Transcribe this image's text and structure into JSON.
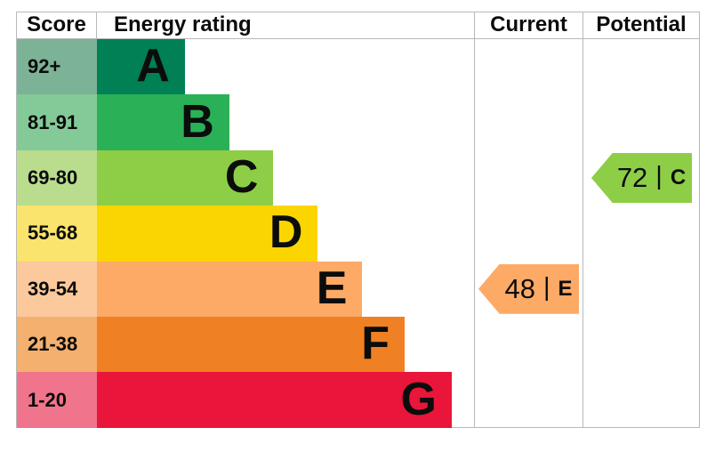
{
  "header": {
    "score": "Score",
    "energy_rating": "Energy rating",
    "current": "Current",
    "potential": "Potential"
  },
  "bands": [
    {
      "score_range": "92+",
      "letter": "A",
      "bar_color": "#008054",
      "score_cell_color": "#7cb295",
      "bar_width_pct": 23.3
    },
    {
      "score_range": "81-91",
      "letter": "B",
      "bar_color": "#2ab157",
      "score_cell_color": "#84ca99",
      "bar_width_pct": 35.1
    },
    {
      "score_range": "69-80",
      "letter": "C",
      "bar_color": "#8dce46",
      "score_cell_color": "#b9dd8d",
      "bar_width_pct": 46.8
    },
    {
      "score_range": "55-68",
      "letter": "D",
      "bar_color": "#fbd500",
      "score_cell_color": "#fae46d",
      "bar_width_pct": 58.6
    },
    {
      "score_range": "39-54",
      "letter": "E",
      "bar_color": "#fcaa65",
      "score_cell_color": "#fbc99c",
      "bar_width_pct": 70.4
    },
    {
      "score_range": "21-38",
      "letter": "F",
      "bar_color": "#ef8023",
      "score_cell_color": "#f4b06e",
      "bar_width_pct": 81.6
    },
    {
      "score_range": "1-20",
      "letter": "G",
      "bar_color": "#e9153b",
      "score_cell_color": "#f0748b",
      "bar_width_pct": 94.1
    }
  ],
  "current": {
    "value": "48",
    "separator": "|",
    "band": "E",
    "arrow_color": "#fcaa65",
    "row_index": 4
  },
  "potential": {
    "value": "72",
    "separator": "|",
    "band": "C",
    "arrow_color": "#8dce46",
    "row_index": 2
  },
  "colors": {
    "border": "#b6b9bb",
    "text": "#0b0c0c",
    "background": "#ffffff"
  },
  "chart_data": {
    "type": "bar",
    "orientation": "horizontal",
    "title": "Energy rating",
    "column_headers": [
      "Score",
      "Energy rating",
      "Current",
      "Potential"
    ],
    "categories": [
      "A",
      "B",
      "C",
      "D",
      "E",
      "F",
      "G"
    ],
    "score_ranges": [
      "92+",
      "81-91",
      "69-80",
      "55-68",
      "39-54",
      "21-38",
      "1-20"
    ],
    "bar_lengths_fraction_of_column": [
      0.233,
      0.351,
      0.468,
      0.586,
      0.704,
      0.816,
      0.941
    ],
    "band_colors": [
      "#008054",
      "#2ab157",
      "#8dce46",
      "#fbd500",
      "#fcaa65",
      "#ef8023",
      "#e9153b"
    ],
    "score_cell_colors": [
      "#7cb295",
      "#84ca99",
      "#b9dd8d",
      "#fae46d",
      "#fbc99c",
      "#f4b06e",
      "#f0748b"
    ],
    "current": {
      "score": 48,
      "band": "E"
    },
    "potential": {
      "score": 72,
      "band": "C"
    },
    "legend_position": "none",
    "grid": false
  }
}
